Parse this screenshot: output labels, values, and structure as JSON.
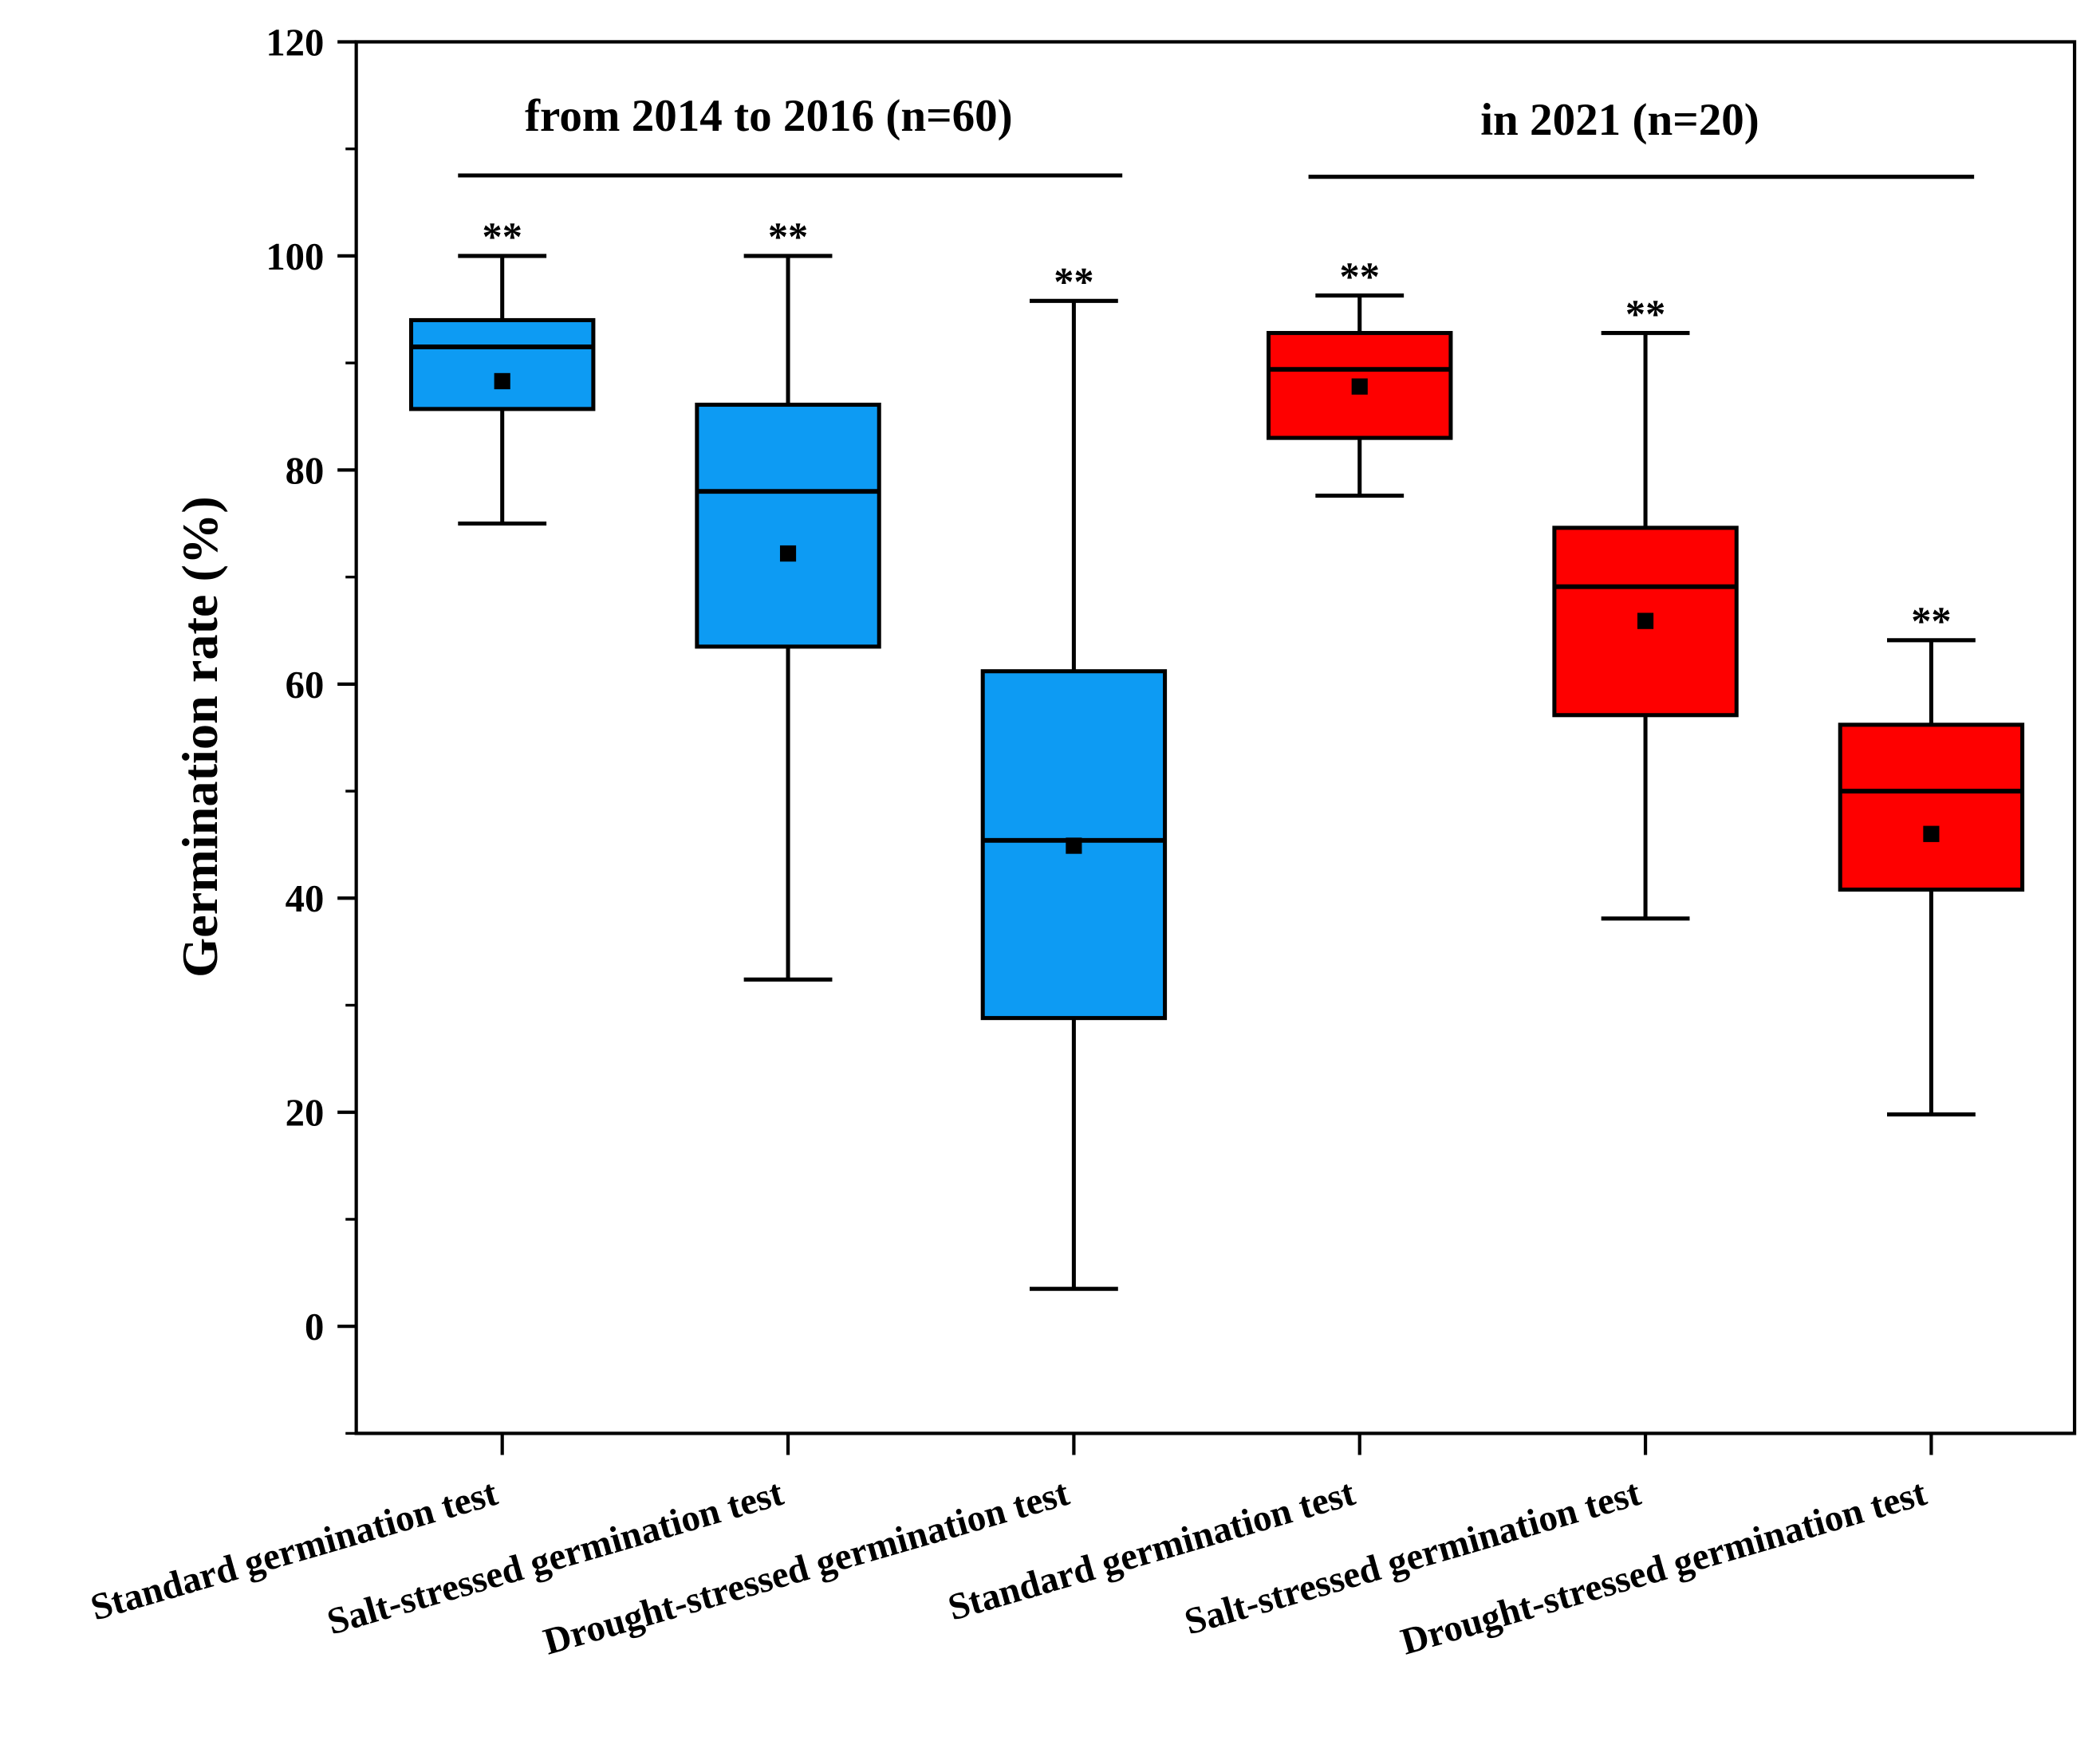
{
  "chart_data": {
    "type": "box",
    "ylabel": "Germination rate (%)",
    "ylim": [
      -10,
      120
    ],
    "yticks": [
      0,
      20,
      40,
      60,
      80,
      100,
      120
    ],
    "yticks_minor": [
      -10,
      10,
      30,
      50,
      70,
      90,
      110
    ],
    "categories": [
      "Standard germination test",
      "Salt-stressed germination test",
      "Drought-stressed germination test",
      "Standard germination test",
      "Salt-stressed germination test",
      "Drought-stressed germination test"
    ],
    "groups": [
      {
        "label": "from 2014 to 2016 (n=60)",
        "indices": [
          0,
          1,
          2
        ],
        "color": "#0d9bf3"
      },
      {
        "label": "in 2021 (n=20)",
        "indices": [
          3,
          4,
          5
        ],
        "color": "#fe0000"
      }
    ],
    "boxes": [
      {
        "whisker_low": 75.0,
        "q1": 85.7,
        "median": 91.5,
        "q3": 94.0,
        "whisker_high": 100.0,
        "mean": 88.3,
        "significance": "**"
      },
      {
        "whisker_low": 32.4,
        "q1": 63.5,
        "median": 78.0,
        "q3": 86.1,
        "whisker_high": 100.0,
        "mean": 72.2,
        "significance": "**"
      },
      {
        "whisker_low": 3.5,
        "q1": 28.8,
        "median": 45.4,
        "q3": 61.2,
        "whisker_high": 95.8,
        "mean": 44.9,
        "significance": "**"
      },
      {
        "whisker_low": 77.6,
        "q1": 83.0,
        "median": 89.4,
        "q3": 92.8,
        "whisker_high": 96.3,
        "mean": 87.8,
        "significance": "**"
      },
      {
        "whisker_low": 38.1,
        "q1": 57.1,
        "median": 69.1,
        "q3": 74.6,
        "whisker_high": 92.8,
        "mean": 65.9,
        "significance": "**"
      },
      {
        "whisker_low": 19.8,
        "q1": 40.8,
        "median": 50.0,
        "q3": 56.2,
        "whisker_high": 64.1,
        "mean": 46.0,
        "significance": "**"
      }
    ],
    "legend": "none",
    "grid": false
  }
}
